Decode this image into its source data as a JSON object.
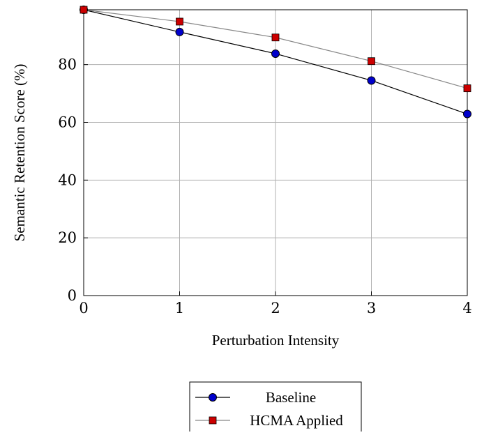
{
  "chart_data": {
    "type": "line",
    "x": [
      0,
      1,
      2,
      3,
      4
    ],
    "xticks": [
      "0",
      "1",
      "2",
      "3",
      "4"
    ],
    "yticks": [
      "0",
      "20",
      "40",
      "60",
      "80"
    ],
    "xlim": [
      0,
      4
    ],
    "ylim": [
      0,
      99
    ],
    "xlabel": "Perturbation Intensity",
    "ylabel": "Semantic Retention Score (%)",
    "grid": true,
    "legend_position": "bottom-center",
    "series": [
      {
        "name": "Baseline",
        "values": [
          99,
          91.3,
          83.8,
          74.5,
          62.9
        ],
        "color": "#0000cc",
        "line_color": "#000000",
        "marker": "circle"
      },
      {
        "name": "HCMA Applied",
        "values": [
          99,
          94.9,
          89.4,
          81.2,
          71.8
        ],
        "color": "#cc0000",
        "line_color": "#888888",
        "marker": "square"
      }
    ]
  }
}
